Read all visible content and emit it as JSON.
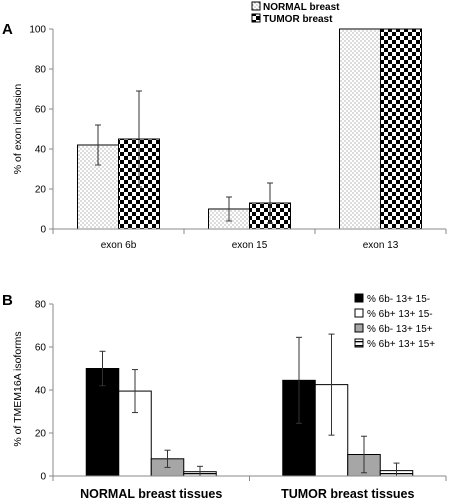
{
  "chart_data": [
    {
      "panel": "A",
      "type": "bar",
      "categories": [
        "exon 6b",
        "exon 15",
        "exon 13"
      ],
      "series": [
        {
          "name": "NORMAL breast",
          "values": [
            42,
            10,
            100
          ],
          "errors": [
            10,
            6,
            0
          ],
          "pattern": "dots"
        },
        {
          "name": "TUMOR breast",
          "values": [
            45,
            13,
            100
          ],
          "errors": [
            24,
            10,
            0
          ],
          "pattern": "checker"
        }
      ],
      "xlabel": "",
      "ylabel": "% of exon inclusion",
      "ylim": [
        0,
        100
      ],
      "yticks": [
        0,
        20,
        40,
        60,
        80,
        100
      ],
      "grid": false,
      "legend": "top-right"
    },
    {
      "panel": "B",
      "type": "bar",
      "categories": [
        "NORMAL breast tissues",
        "TUMOR breast tissues"
      ],
      "series": [
        {
          "name": "% 6b- 13+ 15-",
          "values": [
            50,
            44.5
          ],
          "errors": [
            8,
            20
          ],
          "color": "#000000"
        },
        {
          "name": "% 6b+ 13+ 15-",
          "values": [
            39.5,
            42.5
          ],
          "errors": [
            10,
            23.5
          ],
          "color": "#ffffff"
        },
        {
          "name": "% 6b- 13+ 15+",
          "values": [
            8,
            10
          ],
          "errors": [
            4,
            8.5
          ],
          "color": "#a6a6a6"
        },
        {
          "name": "% 6b+ 13+ 15+",
          "values": [
            2,
            2.5
          ],
          "errors": [
            2.5,
            3.5
          ],
          "color": "#ffffff",
          "pattern": "stripe"
        }
      ],
      "xlabel": "",
      "ylabel": "% of TMEM16A isoforms",
      "ylim": [
        0,
        80
      ],
      "yticks": [
        0,
        20,
        40,
        60,
        80
      ],
      "grid": false,
      "legend": "top-right"
    }
  ]
}
